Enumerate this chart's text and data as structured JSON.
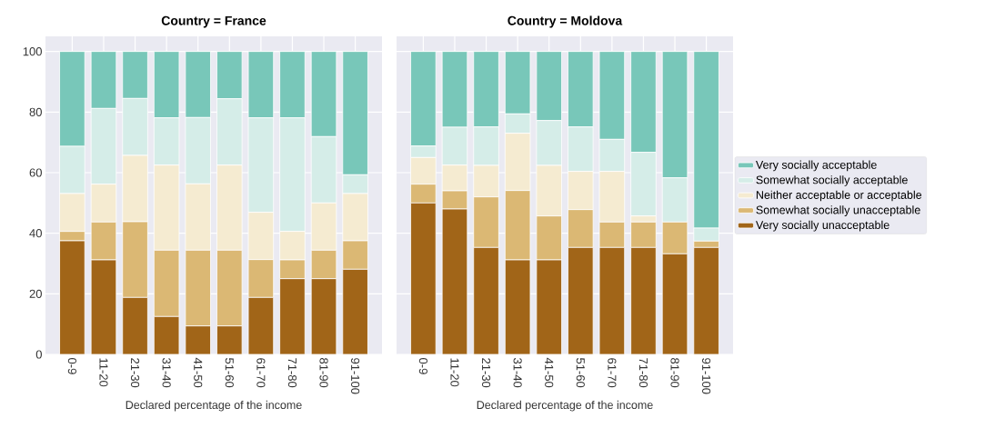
{
  "chart_data": [
    {
      "type": "bar",
      "title": "Country = France",
      "xlabel": "Declared percentage of the income",
      "categories": [
        "0-9",
        "11-20",
        "21-30",
        "31-40",
        "41-50",
        "51-60",
        "61-70",
        "71-80",
        "81-90",
        "91-100"
      ],
      "stacked": true,
      "grid": true,
      "legend": false,
      "ylim": [
        0,
        105
      ],
      "yticks": [
        0,
        20,
        40,
        60,
        80,
        100
      ],
      "series": [
        {
          "color": "#a16518",
          "values": [
            37.5,
            31.2,
            18.8,
            12.5,
            9.4,
            9.4,
            18.8,
            25,
            25,
            28.1
          ]
        },
        {
          "color": "#dbb874",
          "values": [
            3.1,
            12.5,
            25,
            21.9,
            25,
            25,
            12.5,
            6.2,
            9.4,
            9.4
          ]
        },
        {
          "color": "#f5ebd1",
          "values": [
            12.5,
            12.5,
            21.9,
            28.1,
            21.9,
            28.1,
            15.6,
            9.4,
            15.6,
            15.6
          ]
        },
        {
          "color": "#d5ede8",
          "values": [
            15.6,
            25,
            18.8,
            15.6,
            21.9,
            21.9,
            31.2,
            37.5,
            21.9,
            6.2
          ]
        },
        {
          "color": "#78c7b9",
          "values": [
            31.3,
            18.8,
            15.5,
            21.9,
            21.8,
            15.6,
            21.9,
            21.9,
            28.1,
            40.7
          ]
        }
      ]
    },
    {
      "type": "bar",
      "title": "Country = Moldova",
      "xlabel": "Declared percentage of the income",
      "categories": [
        "0-9",
        "11-20",
        "21-30",
        "31-40",
        "41-50",
        "51-60",
        "61-70",
        "71-80",
        "81-90",
        "91-100"
      ],
      "stacked": true,
      "grid": true,
      "legend": "right",
      "tick_labels": "x",
      "ylim": [
        0,
        105
      ],
      "yticks": [
        0,
        20,
        40,
        60,
        80,
        100
      ],
      "series": [
        {
          "name": "Very socially unacceptable",
          "color": "#a16518",
          "values": [
            50,
            48,
            35.3,
            31.2,
            31.2,
            35.3,
            35.3,
            35.3,
            33.2,
            35.3
          ]
        },
        {
          "name": "Somewhat socially unacceptable",
          "color": "#dbb874",
          "values": [
            6.2,
            6,
            16.7,
            22.9,
            14.5,
            12.5,
            8.4,
            8.4,
            10.5,
            2.1
          ]
        },
        {
          "name": "Neither acceptable or acceptable",
          "color": "#f5ebd1",
          "values": [
            8.8,
            8.5,
            10.4,
            18.9,
            16.7,
            12.6,
            16.7,
            2,
            0,
            0
          ]
        },
        {
          "name": "Somewhat socially acceptable",
          "color": "#d5ede8",
          "values": [
            3.8,
            12.5,
            12.7,
            6.4,
            14.8,
            14.7,
            10.6,
            21,
            14.6,
            4.3
          ]
        },
        {
          "name": "Very socially acceptable",
          "color": "#78c7b9",
          "values": [
            31.2,
            25,
            24.9,
            20.6,
            22.8,
            24.9,
            29,
            33.3,
            41.7,
            58.3
          ]
        }
      ]
    }
  ]
}
